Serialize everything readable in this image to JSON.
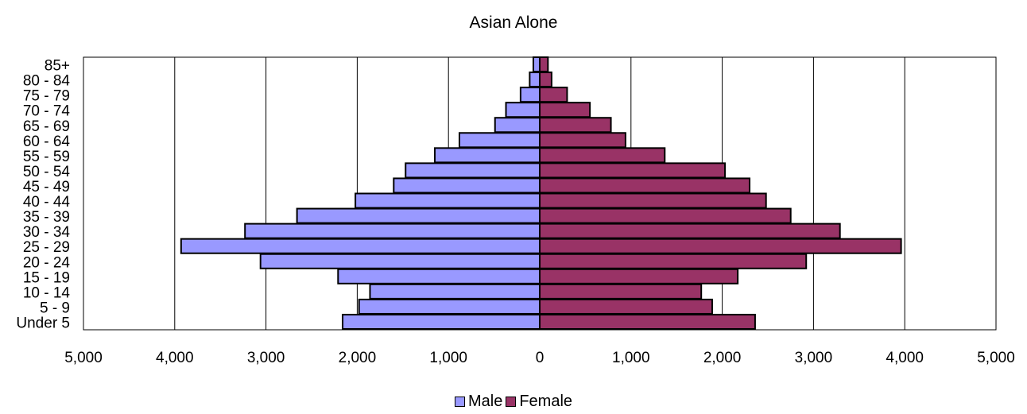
{
  "chart_data": {
    "type": "bar",
    "orientation": "horizontal-population-pyramid",
    "title": "Asian Alone",
    "categories": [
      "Under 5",
      "5 - 9",
      "10 - 14",
      "15 - 19",
      "20 - 24",
      "25 - 29",
      "30 - 34",
      "35 - 39",
      "40 - 44",
      "45 - 49",
      "50 - 54",
      "55 - 59",
      "60 - 64",
      "65 - 69",
      "70 - 74",
      "75 - 79",
      "80 - 84",
      "85+"
    ],
    "series": [
      {
        "name": "Male",
        "color": "#9999ff",
        "values": [
          2160,
          1980,
          1860,
          2210,
          3060,
          3930,
          3230,
          2660,
          2020,
          1600,
          1470,
          1150,
          880,
          490,
          370,
          210,
          110,
          70
        ]
      },
      {
        "name": "Female",
        "color": "#993366",
        "values": [
          2360,
          1890,
          1770,
          2170,
          2920,
          3960,
          3290,
          2750,
          2480,
          2300,
          2030,
          1370,
          940,
          780,
          550,
          300,
          130,
          90
        ]
      }
    ],
    "xlim": [
      -5000,
      5000
    ],
    "x_ticks": [
      -5000,
      -4000,
      -3000,
      -2000,
      -1000,
      0,
      1000,
      2000,
      3000,
      4000,
      5000
    ],
    "x_tick_labels": [
      "5,000",
      "4,000",
      "3,000",
      "2,000",
      "1,000",
      "0",
      "1,000",
      "2,000",
      "3,000",
      "4,000",
      "5,000"
    ],
    "grid": "vertical",
    "legend_position": "bottom",
    "xlabel": "",
    "ylabel": ""
  }
}
